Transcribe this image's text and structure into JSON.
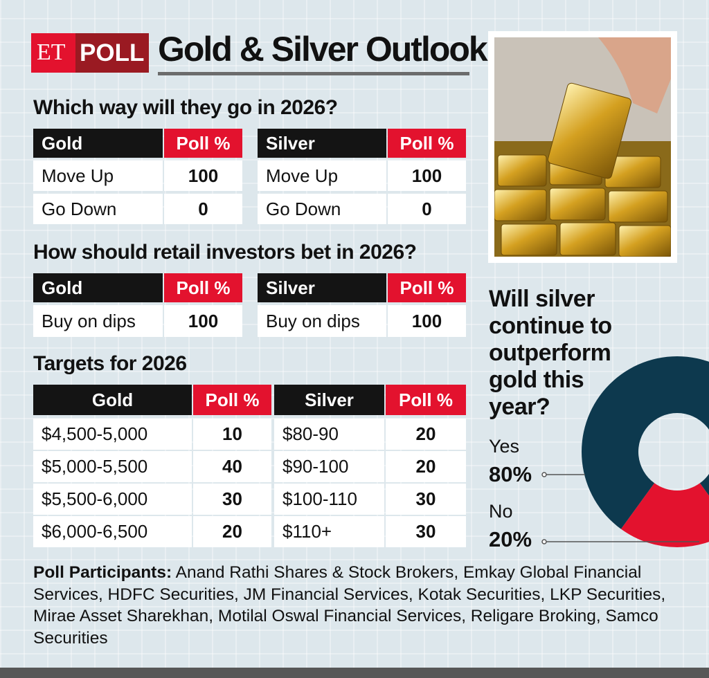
{
  "header": {
    "badge_et": "ET",
    "badge_poll": "POLL",
    "title": "Gold & Silver Outlook"
  },
  "direction": {
    "heading": "Which way will they go in 2026?",
    "tables": [
      {
        "columns": [
          "Gold",
          "Poll %"
        ],
        "rows": [
          [
            "Move Up",
            100
          ],
          [
            "Go Down",
            0
          ]
        ]
      },
      {
        "columns": [
          "Silver",
          "Poll %"
        ],
        "rows": [
          [
            "Move Up",
            100
          ],
          [
            "Go Down",
            0
          ]
        ]
      }
    ]
  },
  "strategy": {
    "heading": "How should retail investors bet in 2026?",
    "tables": [
      {
        "columns": [
          "Gold",
          "Poll %"
        ],
        "rows": [
          [
            "Buy on dips",
            100
          ]
        ]
      },
      {
        "columns": [
          "Silver",
          "Poll %"
        ],
        "rows": [
          [
            "Buy on dips",
            100
          ]
        ]
      }
    ]
  },
  "targets": {
    "heading": "Targets for 2026",
    "columns": [
      "Gold",
      "Poll %",
      "Silver",
      "Poll %"
    ],
    "rows": [
      [
        "$4,500-5,000",
        10,
        "$80-90",
        20
      ],
      [
        "$5,000-5,500",
        40,
        "$90-100",
        20
      ],
      [
        "$5,500-6,000",
        30,
        "$100-110",
        30
      ],
      [
        "$6,000-6,500",
        20,
        "$110+",
        30
      ]
    ]
  },
  "chart_data": {
    "type": "pie",
    "title": "Will silver continue to outperform gold this year?",
    "categories": [
      "Yes",
      "No"
    ],
    "values": [
      80,
      20
    ],
    "value_labels": [
      "80%",
      "20%"
    ],
    "colors": [
      "#0d394e",
      "#e3122e"
    ]
  },
  "participants": {
    "label": "Poll Participants:",
    "text": "Anand Rathi Shares & Stock Brokers, Emkay Global Financial Services, HDFC Securities, JM Financial Services, Kotak Securities, LKP Securities, Mirae Asset Sharekhan, Motilal Oswal Financial Services, Religare Broking, Samco Securities"
  }
}
